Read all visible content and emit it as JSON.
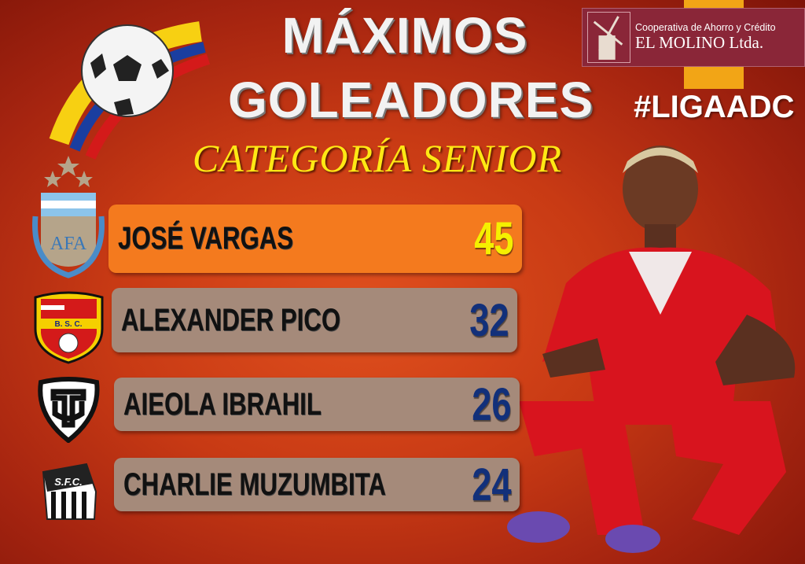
{
  "title": {
    "line1": "MÁXIMOS",
    "line2": "GOLEADORES",
    "subtitle": "CATEGORÍA SENIOR"
  },
  "sponsor": {
    "line1": "Cooperativa de Ahorro y Crédito",
    "line2": "EL MOLINO Ltda."
  },
  "hashtag": "#LIGAADC",
  "colors": {
    "highlight_row": "#f47a1e",
    "row": "#a58a7a",
    "top_goals": "#f5f000",
    "goals": "#12307a",
    "title_subtitle": "#ffe814"
  },
  "scorers": [
    {
      "rank": 1,
      "name": "JOSÉ VARGAS",
      "goals": "45",
      "badge": "afa-crest",
      "badge_text": "AFA"
    },
    {
      "rank": 2,
      "name": "ALEXANDER PICO",
      "goals": "32",
      "badge": "bsc-crest",
      "badge_text": "B. S. C."
    },
    {
      "rank": 3,
      "name": "AIEOLA IBRAHIL",
      "goals": "26",
      "badge": "tu-crest"
    },
    {
      "rank": 4,
      "name": "CHARLIE MUZUMBITA",
      "goals": "24",
      "badge": "sfc-crest",
      "badge_text": "S.F.C."
    }
  ]
}
